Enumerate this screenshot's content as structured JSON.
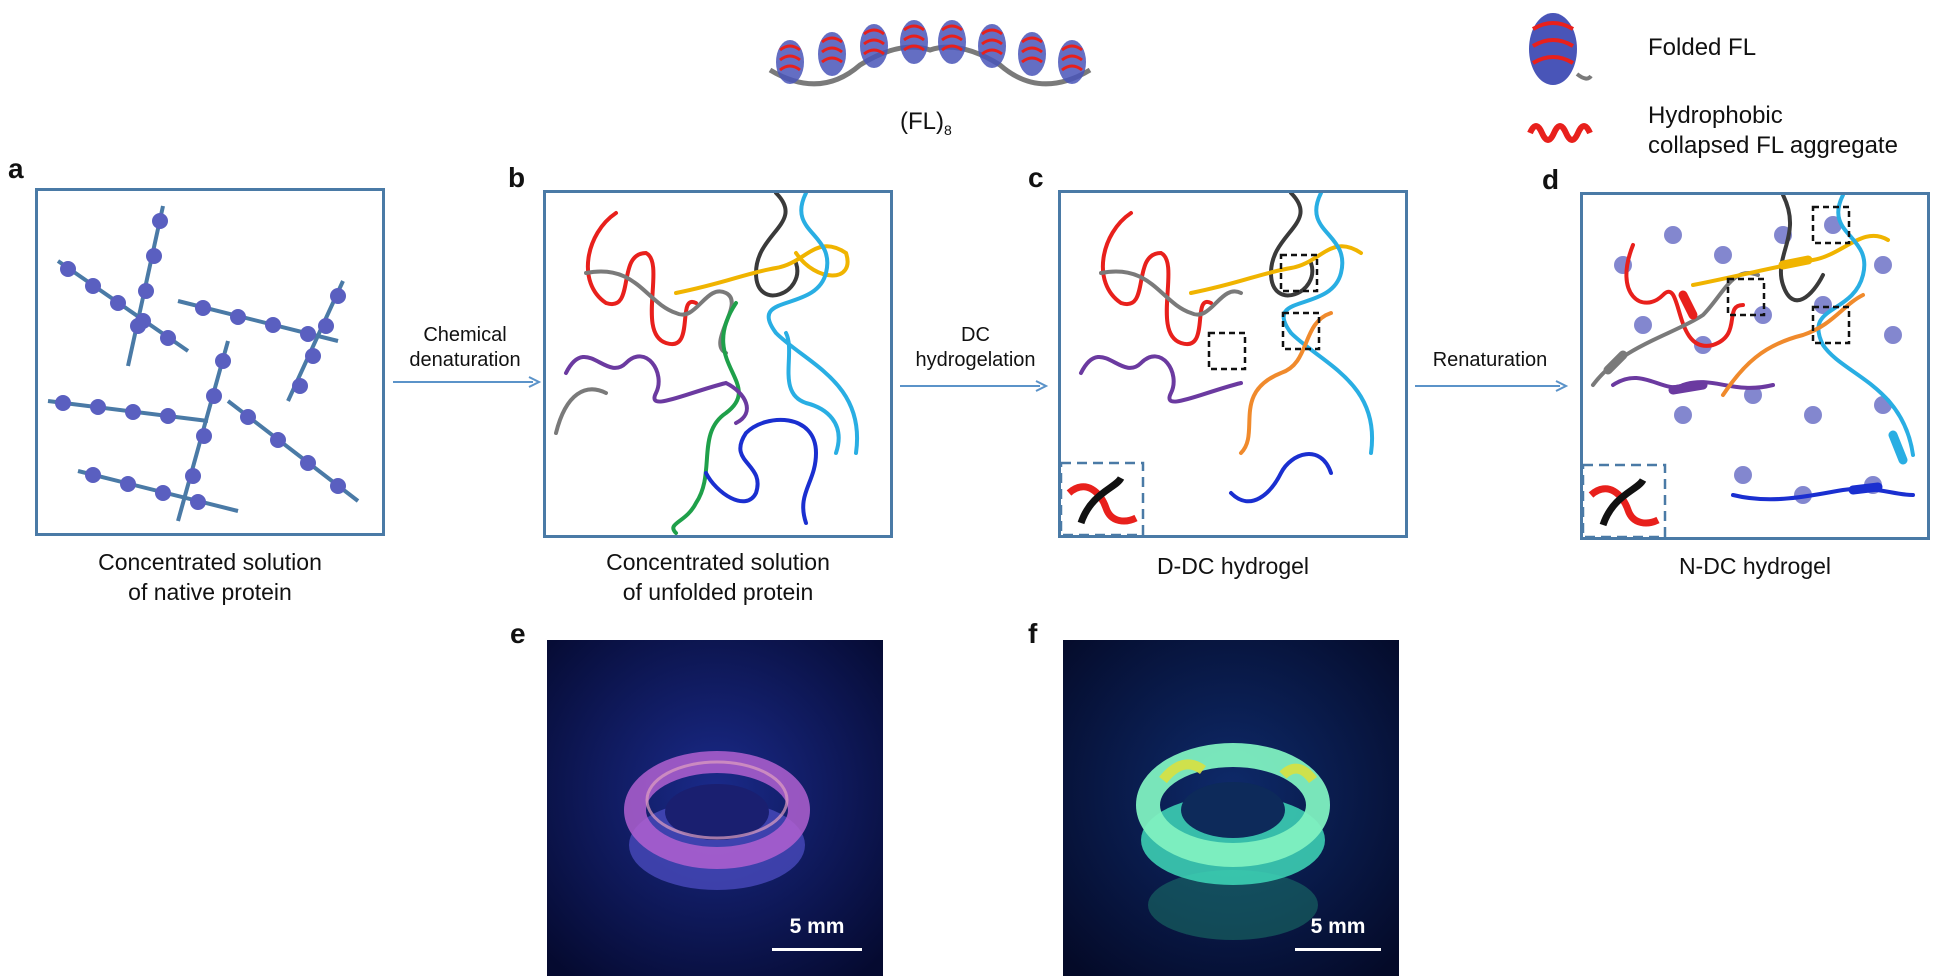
{
  "header": {
    "construct_label": "(FL)",
    "construct_subscript": "8"
  },
  "legend": {
    "folded": "Folded FL",
    "aggregate_line1": "Hydrophobic",
    "aggregate_line2": "collapsed FL aggregate"
  },
  "panels": {
    "a": {
      "letter": "a",
      "caption_line1": "Concentrated solution",
      "caption_line2": "of native protein"
    },
    "b": {
      "letter": "b",
      "caption_line1": "Concentrated solution",
      "caption_line2": "of unfolded protein"
    },
    "c": {
      "letter": "c",
      "caption": "D-DC hydrogel"
    },
    "d": {
      "letter": "d",
      "caption": "N-DC hydrogel"
    },
    "e": {
      "letter": "e",
      "scale": "5 mm"
    },
    "f": {
      "letter": "f",
      "scale": "5 mm"
    }
  },
  "arrows": {
    "ab_line1": "Chemical",
    "ab_line2": "denaturation",
    "bc_line1": "DC",
    "bc_line2": "hydrogelation",
    "cd": "Renaturation"
  },
  "colors": {
    "frame": "#4a7aa6",
    "arrow": "#5b93c9",
    "chain_red": "#e8201c",
    "chain_gray": "#7a7a7a",
    "chain_dark": "#3a3a3a",
    "chain_yellow": "#f0b400",
    "chain_cyan": "#29aee3",
    "chain_green": "#1fa04a",
    "chain_purple": "#6b3aa0",
    "chain_blue": "#1a2fd0",
    "chain_orange": "#f08a2c"
  }
}
